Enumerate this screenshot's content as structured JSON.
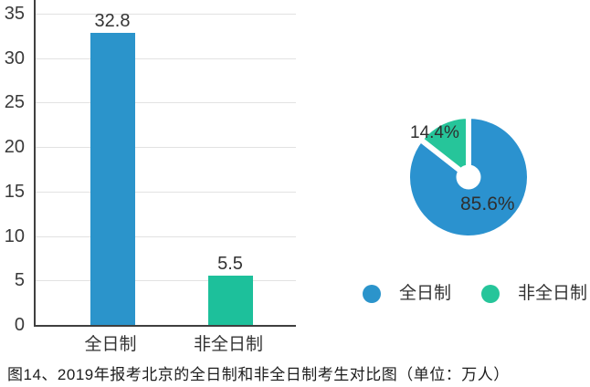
{
  "caption": "图14、2019年报考北京的全日制和非全日制考生对比图（单位：万人）",
  "colors": {
    "bar_blue": "#2b94cb",
    "bar_green": "#1dc09b",
    "pie_blue": "#2b92cf",
    "pie_green": "#26c59a",
    "grid": "#e2e2e2",
    "axis": "#3f3f3f",
    "text": "#333333"
  },
  "chart_data": [
    {
      "type": "bar",
      "categories": [
        "全日制",
        "非全日制"
      ],
      "values": [
        32.8,
        5.5
      ],
      "value_labels": [
        "32.8",
        "5.5"
      ],
      "bar_colors": [
        "#2b94cb",
        "#1dc09b"
      ],
      "ylabel": "",
      "xlabel": "",
      "ylim": [
        0,
        35
      ],
      "yticks": [
        0,
        5,
        10,
        15,
        20,
        25,
        30,
        35
      ],
      "grid": true,
      "unit": "万人"
    },
    {
      "type": "pie",
      "donut": true,
      "start_angle": "top, clockwise",
      "slices": [
        {
          "label": "全日制",
          "value_pct": 85.6,
          "display": "85.6%",
          "color": "#2b92cf"
        },
        {
          "label": "非全日制",
          "value_pct": 14.4,
          "display": "14.4%",
          "color": "#26c59a"
        }
      ],
      "legend_position": "bottom"
    }
  ],
  "legend": {
    "items": [
      {
        "label": "全日制",
        "color": "#2b94cb"
      },
      {
        "label": "非全日制",
        "color": "#26c59a"
      }
    ]
  }
}
